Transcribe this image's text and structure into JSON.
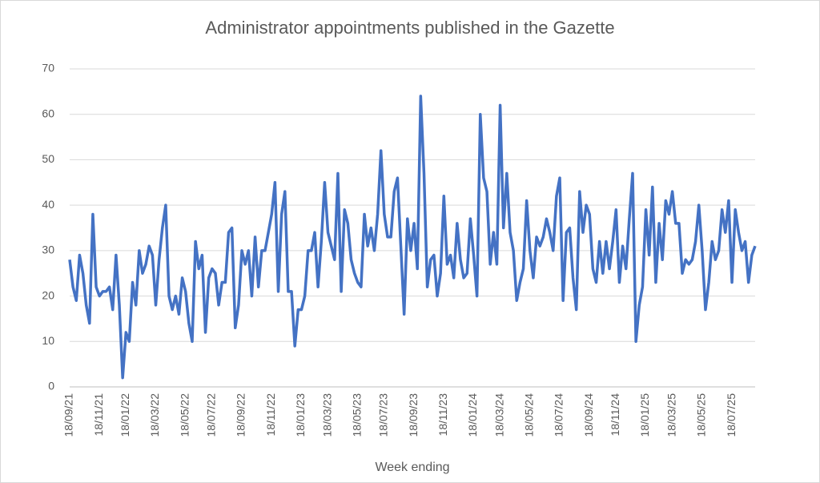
{
  "chart_data": {
    "type": "line",
    "title": "Administrator appointments published in the Gazette",
    "x_label": "Week ending",
    "categories": [
      "18/09/21",
      null,
      null,
      null,
      null,
      null,
      null,
      null,
      null,
      "18/11/21",
      null,
      null,
      null,
      null,
      null,
      null,
      null,
      "18/01/22",
      null,
      null,
      null,
      null,
      null,
      null,
      null,
      null,
      "18/03/22",
      null,
      null,
      null,
      null,
      null,
      null,
      null,
      null,
      "18/05/22",
      null,
      null,
      null,
      null,
      null,
      null,
      null,
      "18/07/22",
      null,
      null,
      null,
      null,
      null,
      null,
      null,
      null,
      "18/09/22",
      null,
      null,
      null,
      null,
      null,
      null,
      null,
      null,
      "18/11/22",
      null,
      null,
      null,
      null,
      null,
      null,
      null,
      null,
      "18/01/23",
      null,
      null,
      null,
      null,
      null,
      null,
      null,
      "18/03/23",
      null,
      null,
      null,
      null,
      null,
      null,
      null,
      null,
      "18/05/23",
      null,
      null,
      null,
      null,
      null,
      null,
      null,
      "18/07/23",
      null,
      null,
      null,
      null,
      null,
      null,
      null,
      null,
      "18/09/23",
      null,
      null,
      null,
      null,
      null,
      null,
      null,
      null,
      "18/11/23",
      null,
      null,
      null,
      null,
      null,
      null,
      null,
      null,
      "18/01/24",
      null,
      null,
      null,
      null,
      null,
      null,
      null,
      "18/03/24",
      null,
      null,
      null,
      null,
      null,
      null,
      null,
      null,
      "18/05/24",
      null,
      null,
      null,
      null,
      null,
      null,
      null,
      null,
      "18/07/24",
      null,
      null,
      null,
      null,
      null,
      null,
      null,
      null,
      "18/09/24",
      null,
      null,
      null,
      null,
      null,
      null,
      null,
      "18/11/24",
      null,
      null,
      null,
      null,
      null,
      null,
      null,
      null,
      "18/01/25",
      null,
      null,
      null,
      null,
      null,
      null,
      null,
      "18/03/25",
      null,
      null,
      null,
      null,
      null,
      null,
      null,
      null,
      "18/05/25",
      null,
      null,
      null,
      null,
      null,
      null,
      null,
      null,
      "18/07/25",
      null,
      null,
      null,
      null,
      null,
      null,
      null
    ],
    "series": [
      {
        "color": "#4472c4",
        "values": [
          28,
          22,
          19,
          29,
          25,
          18,
          14,
          38,
          22,
          20,
          21,
          21,
          22,
          17,
          29,
          18,
          2,
          12,
          10,
          23,
          18,
          30,
          25,
          27,
          31,
          29,
          18,
          28,
          35,
          40,
          20,
          17,
          20,
          16,
          24,
          21,
          14,
          10,
          32,
          26,
          29,
          12,
          24,
          26,
          25,
          18,
          23,
          23,
          34,
          35,
          13,
          18,
          30,
          27,
          30,
          20,
          33,
          22,
          30,
          30,
          34,
          38,
          45,
          21,
          38,
          43,
          21,
          21,
          9,
          17,
          17,
          20,
          30,
          30,
          34,
          22,
          32,
          45,
          34,
          31,
          28,
          47,
          21,
          39,
          36,
          28,
          25,
          23,
          22,
          38,
          31,
          35,
          30,
          38,
          52,
          38,
          33,
          33,
          43,
          46,
          31,
          16,
          37,
          30,
          36,
          26,
          64,
          47,
          22,
          28,
          29,
          20,
          25,
          42,
          27,
          29,
          24,
          36,
          28,
          24,
          25,
          37,
          29,
          20,
          60,
          46,
          43,
          27,
          34,
          27,
          62,
          35,
          47,
          34,
          30,
          19,
          23,
          26,
          41,
          30,
          24,
          33,
          31,
          33,
          37,
          34,
          30,
          42,
          46,
          19,
          34,
          35,
          24,
          17,
          43,
          34,
          40,
          38,
          26,
          23,
          32,
          25,
          32,
          26,
          32,
          39,
          23,
          31,
          26,
          37,
          47,
          10,
          18,
          22,
          39,
          29,
          44,
          23,
          36,
          28,
          41,
          38,
          43,
          36,
          36,
          25,
          28,
          27,
          28,
          32,
          40,
          30,
          17,
          23,
          32,
          28,
          30,
          39,
          34,
          41,
          23,
          39,
          34,
          30,
          32,
          23,
          29,
          31
        ]
      }
    ],
    "ylim": [
      0,
      70
    ],
    "yticks": [
      0,
      10,
      20,
      30,
      40,
      50,
      60,
      70
    ],
    "grid": true
  }
}
